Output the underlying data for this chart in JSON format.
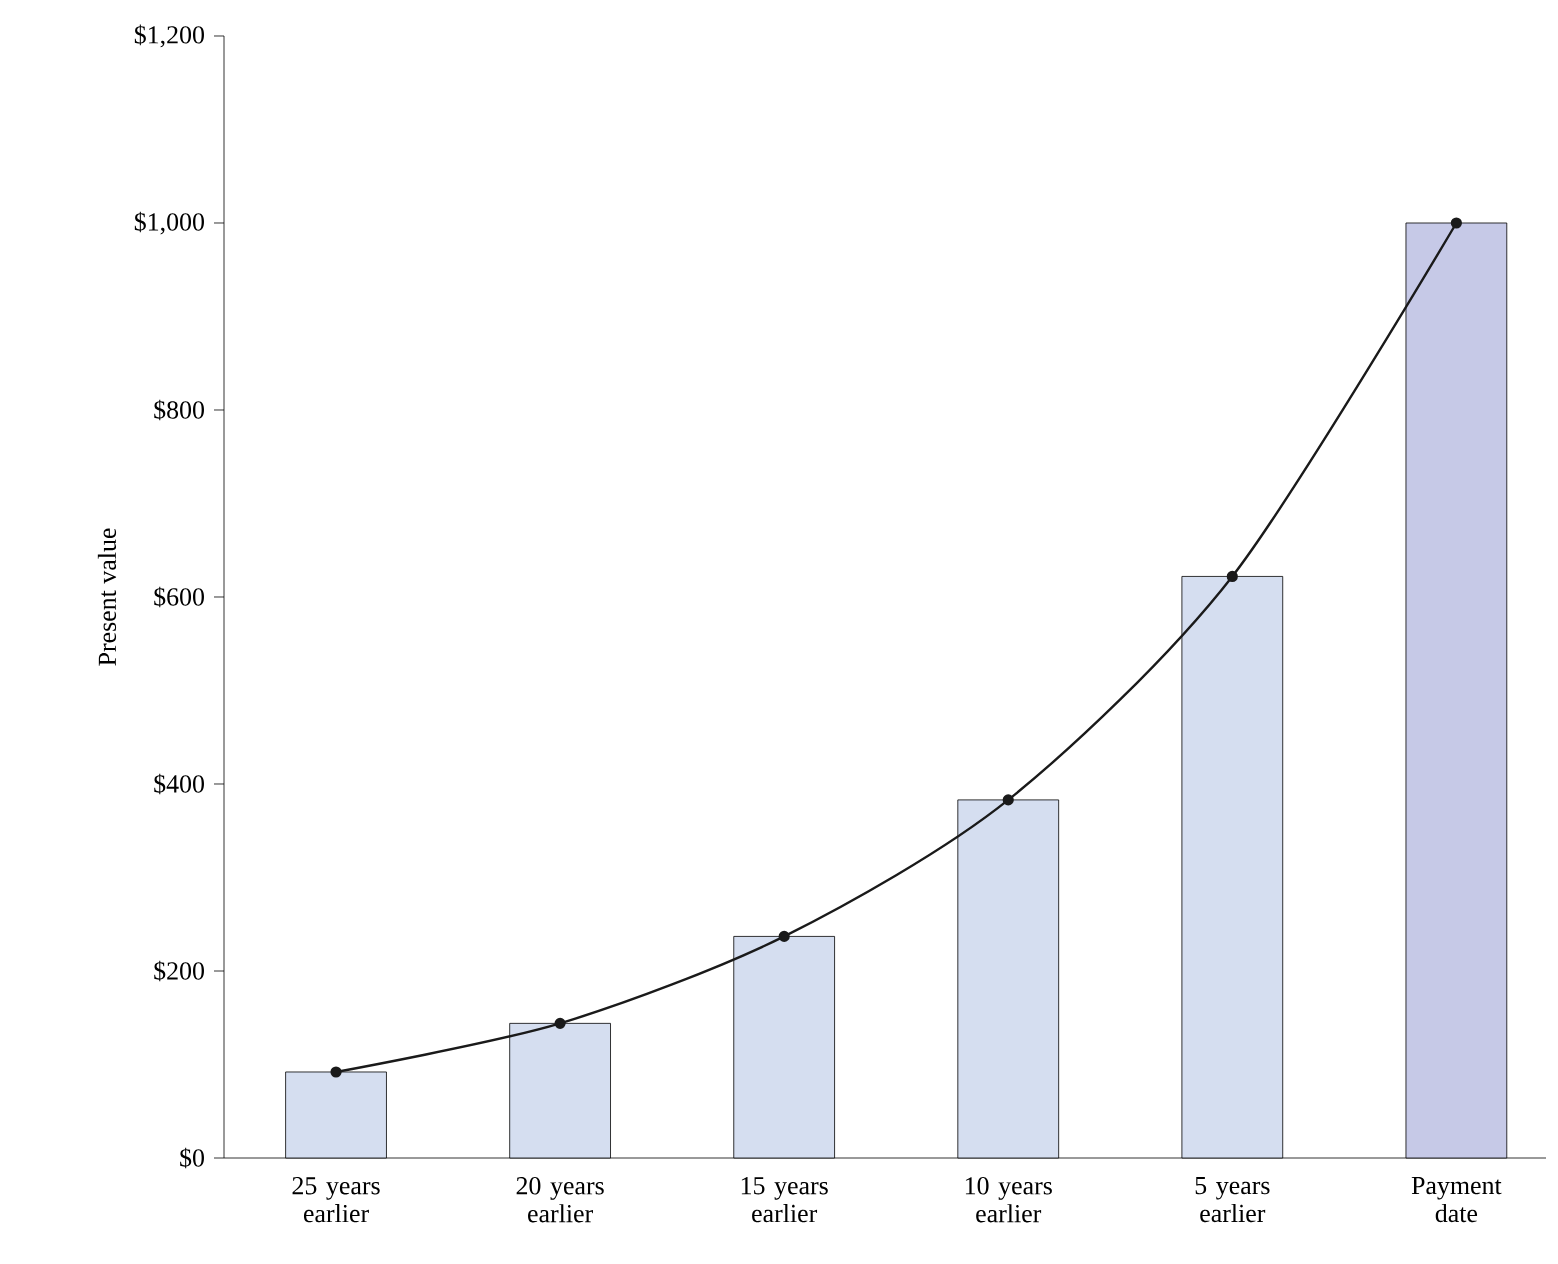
{
  "chart_data": {
    "type": "bar",
    "ylabel": "Present value",
    "categories": [
      "25 years earlier",
      "20 years earlier",
      "15 years earlier",
      "10 years earlier",
      "5 years earlier",
      "Payment date"
    ],
    "series": [
      {
        "colors": [
          "#d5def0",
          "#d5def0",
          "#d5def0",
          "#d5def0",
          "#d5def0",
          "#c6c9e7"
        ],
        "values": [
          92,
          144,
          237,
          383,
          622,
          1000
        ]
      },
      {
        "type": "line",
        "color": "#1a1a1a",
        "marker": "circle",
        "values": [
          92,
          144,
          237,
          383,
          622,
          1000
        ]
      }
    ],
    "ylim": [
      0,
      1200
    ],
    "yticks": [
      {
        "value": 0,
        "label": "$0"
      },
      {
        "value": 200,
        "label": "$200"
      },
      {
        "value": 400,
        "label": "$400"
      },
      {
        "value": 600,
        "label": "$600"
      },
      {
        "value": 800,
        "label": "$800"
      },
      {
        "value": 1000,
        "label": "$1,000"
      },
      {
        "value": 1200,
        "label": "$1,200"
      }
    ],
    "grid": false
  }
}
